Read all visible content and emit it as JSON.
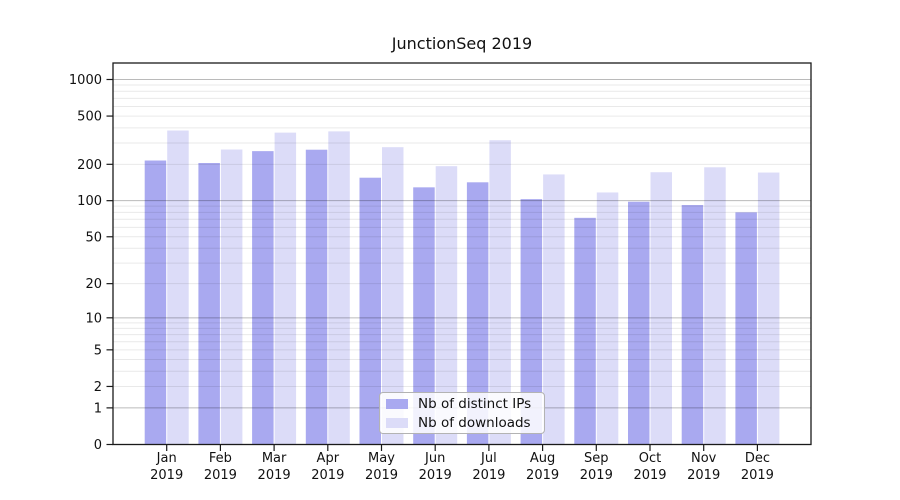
{
  "title": "JunctionSeq 2019",
  "chart_data": {
    "type": "bar",
    "title": "JunctionSeq 2019",
    "categories": [
      "Jan 2019",
      "Feb 2019",
      "Mar 2019",
      "Apr 2019",
      "May 2019",
      "Jun 2019",
      "Jul 2019",
      "Aug 2019",
      "Sep 2019",
      "Oct 2019",
      "Nov 2019",
      "Dec 2019"
    ],
    "series": [
      {
        "name": "Nb of distinct IPs",
        "color": "#a9a9f0",
        "values": [
          215,
          205,
          257,
          264,
          155,
          129,
          142,
          103,
          72,
          98,
          92,
          80
        ]
      },
      {
        "name": "Nb of downloads",
        "color": "#dcdcf8",
        "values": [
          380,
          265,
          365,
          374,
          277,
          193,
          316,
          165,
          117,
          172,
          189,
          171
        ]
      }
    ],
    "y_ticks": [
      0,
      1,
      2,
      5,
      10,
      20,
      50,
      100,
      200,
      500,
      1000
    ],
    "scale": "log10(value+1)",
    "ylim": [
      0,
      1380
    ],
    "grid": true,
    "legend_position": "lower-center-inside",
    "xlabel": "",
    "ylabel": ""
  },
  "colors": {
    "background": "#ffffff",
    "bar_ips": "#a9a9f0",
    "bar_downloads": "#dcdcf8",
    "grid_major": "rgba(0,0,0,0.27)",
    "grid_minor": "rgba(0,0,0,0.085)",
    "axis": "#1a1a1a",
    "tick_label": "#111111",
    "legend_border": "#b3b3b3"
  }
}
